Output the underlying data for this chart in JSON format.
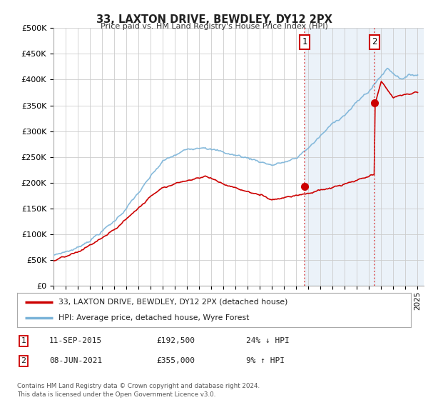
{
  "title": "33, LAXTON DRIVE, BEWDLEY, DY12 2PX",
  "subtitle": "Price paid vs. HM Land Registry's House Price Index (HPI)",
  "ylabel_ticks": [
    "£0",
    "£50K",
    "£100K",
    "£150K",
    "£200K",
    "£250K",
    "£300K",
    "£350K",
    "£400K",
    "£450K",
    "£500K"
  ],
  "ytick_values": [
    0,
    50000,
    100000,
    150000,
    200000,
    250000,
    300000,
    350000,
    400000,
    450000,
    500000
  ],
  "ylim": [
    0,
    500000
  ],
  "hpi_color": "#7ab3d8",
  "price_color": "#cc0000",
  "bg_color": "#ffffff",
  "plot_bg_color": "#ffffff",
  "grid_color": "#cccccc",
  "shade_color": "#dce9f5",
  "vline_color": "#e06060",
  "purchase1_date_num": 2015.69,
  "purchase1_price": 192500,
  "purchase1_label": "1",
  "purchase2_date_num": 2021.44,
  "purchase2_price": 355000,
  "purchase2_label": "2",
  "legend_label_red": "33, LAXTON DRIVE, BEWDLEY, DY12 2PX (detached house)",
  "legend_label_blue": "HPI: Average price, detached house, Wyre Forest",
  "table_row1": [
    "1",
    "11-SEP-2015",
    "£192,500",
    "24% ↓ HPI"
  ],
  "table_row2": [
    "2",
    "08-JUN-2021",
    "£355,000",
    "9% ↑ HPI"
  ],
  "footnote": "Contains HM Land Registry data © Crown copyright and database right 2024.\nThis data is licensed under the Open Government Licence v3.0.",
  "xstart": 1995.0,
  "xend": 2025.5
}
